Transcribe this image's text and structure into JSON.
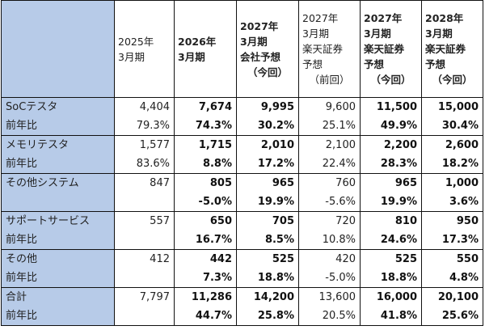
{
  "headers": {
    "c1": [
      "2025年",
      "3月期"
    ],
    "c2": [
      "2026年",
      "3月期"
    ],
    "c3": [
      "2027年",
      "3月期",
      "会社予想",
      "（今回）"
    ],
    "c4": [
      "2027年",
      "3月期",
      "楽天証券",
      "予想",
      "（前回）"
    ],
    "c5": [
      "2027年",
      "3月期",
      "楽天証券",
      "予想",
      "（今回）"
    ],
    "c6": [
      "2028年",
      "3月期",
      "楽天証券",
      "予想",
      "（今回）"
    ]
  },
  "rows": [
    {
      "label": "SoCテスタ",
      "values": [
        "4,404",
        "7,674",
        "9,995",
        "9,600",
        "11,500",
        "15,000"
      ],
      "yoy_label": "前年比",
      "yoy": [
        "79.3%",
        "74.3%",
        "30.2%",
        "25.1%",
        "49.9%",
        "30.4%"
      ]
    },
    {
      "label": "メモリテスタ",
      "values": [
        "1,577",
        "1,715",
        "2,010",
        "2,100",
        "2,200",
        "2,600"
      ],
      "yoy_label": "前年比",
      "yoy": [
        "83.6%",
        "8.8%",
        "17.2%",
        "22.4%",
        "28.3%",
        "18.2%"
      ]
    },
    {
      "label": "その他システム",
      "values": [
        "847",
        "805",
        "965",
        "760",
        "965",
        "1,000"
      ],
      "yoy_label": "",
      "yoy": [
        "",
        "-5.0%",
        "19.9%",
        "-5.6%",
        "19.9%",
        "3.6%"
      ]
    },
    {
      "label": "サポートサービス",
      "values": [
        "557",
        "650",
        "705",
        "720",
        "810",
        "950"
      ],
      "yoy_label": "前年比",
      "yoy": [
        "",
        "16.7%",
        "8.5%",
        "10.8%",
        "24.6%",
        "17.3%"
      ]
    },
    {
      "label": "その他",
      "values": [
        "412",
        "442",
        "525",
        "420",
        "525",
        "550"
      ],
      "yoy_label": "前年比",
      "yoy": [
        "",
        "7.3%",
        "18.8%",
        "-5.0%",
        "18.8%",
        "4.8%"
      ]
    },
    {
      "label": "合計",
      "values": [
        "7,797",
        "11,286",
        "14,200",
        "13,600",
        "16,000",
        "20,100"
      ],
      "yoy_label": "前年比",
      "yoy": [
        "",
        "44.7%",
        "25.8%",
        "20.5%",
        "41.8%",
        "25.6%"
      ]
    }
  ],
  "colors": {
    "label_bg": "#b7cbe8",
    "border": "#111111"
  }
}
